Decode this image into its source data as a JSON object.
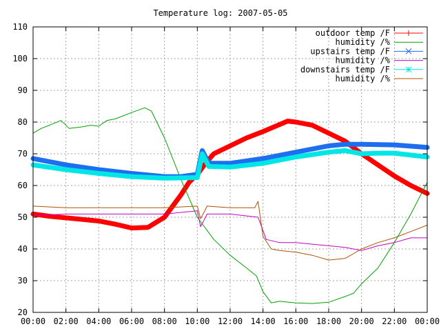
{
  "chart_data": {
    "type": "line",
    "title": "Temperature log: 2007-05-05",
    "xlabel": "",
    "ylabel": "",
    "xlim": [
      0,
      24
    ],
    "ylim": [
      20,
      110
    ],
    "x_ticks": [
      "00:00",
      "02:00",
      "04:00",
      "06:00",
      "08:00",
      "10:00",
      "12:00",
      "14:00",
      "16:00",
      "18:00",
      "20:00",
      "22:00",
      "00:00"
    ],
    "y_ticks": [
      20,
      30,
      40,
      50,
      60,
      70,
      80,
      90,
      100,
      110
    ],
    "grid": true,
    "legend_position": "top-right",
    "series": [
      {
        "name": "outdoor temp /F",
        "color": "#ff0000",
        "marker": "plus",
        "style": "thick",
        "points": [
          [
            0,
            51
          ],
          [
            1,
            50.3
          ],
          [
            2,
            49.8
          ],
          [
            3,
            49.3
          ],
          [
            4,
            48.8
          ],
          [
            5,
            47.8
          ],
          [
            6,
            46.6
          ],
          [
            7,
            46.8
          ],
          [
            8,
            50
          ],
          [
            9,
            57
          ],
          [
            9.5,
            61
          ],
          [
            10,
            63.5
          ],
          [
            10.5,
            67
          ],
          [
            11,
            70
          ],
          [
            12,
            72.5
          ],
          [
            13,
            75
          ],
          [
            14,
            77
          ],
          [
            15,
            79.2
          ],
          [
            15.5,
            80.3
          ],
          [
            16,
            80
          ],
          [
            17,
            79
          ],
          [
            18,
            76.5
          ],
          [
            19,
            74
          ],
          [
            20,
            70
          ],
          [
            21,
            66.5
          ],
          [
            22,
            63
          ],
          [
            23,
            60
          ],
          [
            24,
            57.5
          ]
        ]
      },
      {
        "name": "humidity /%",
        "color": "#00a000",
        "marker": "none",
        "style": "thin",
        "points": [
          [
            0,
            76.5
          ],
          [
            0.5,
            78
          ],
          [
            1,
            79
          ],
          [
            1.7,
            80.5
          ],
          [
            2.2,
            78
          ],
          [
            3,
            78.5
          ],
          [
            3.5,
            79
          ],
          [
            4,
            78.7
          ],
          [
            4.5,
            80.5
          ],
          [
            5,
            81
          ],
          [
            6,
            83
          ],
          [
            6.8,
            84.5
          ],
          [
            7.2,
            83.5
          ],
          [
            8,
            75
          ],
          [
            9,
            62
          ],
          [
            10,
            50
          ],
          [
            11,
            43
          ],
          [
            12,
            38
          ],
          [
            13,
            34
          ],
          [
            13.6,
            31.5
          ],
          [
            14,
            26.5
          ],
          [
            14.5,
            23
          ],
          [
            15,
            23.5
          ],
          [
            16,
            23
          ],
          [
            17,
            22.8
          ],
          [
            18,
            23.2
          ],
          [
            19,
            25
          ],
          [
            19.5,
            26
          ],
          [
            20,
            29
          ],
          [
            21,
            34
          ],
          [
            22,
            42
          ],
          [
            23,
            51
          ],
          [
            24,
            61
          ]
        ]
      },
      {
        "name": "upstairs temp /F",
        "color": "#1e6ef0",
        "marker": "x",
        "style": "thick",
        "points": [
          [
            0,
            68.5
          ],
          [
            2,
            66.5
          ],
          [
            4,
            65
          ],
          [
            6,
            63.8
          ],
          [
            8,
            62.8
          ],
          [
            9,
            62.8
          ],
          [
            10,
            63.5
          ],
          [
            10.3,
            71
          ],
          [
            10.7,
            67
          ],
          [
            12,
            67
          ],
          [
            14,
            68.5
          ],
          [
            16,
            70.5
          ],
          [
            18,
            72.5
          ],
          [
            19,
            73
          ],
          [
            20,
            73
          ],
          [
            22,
            72.8
          ],
          [
            24,
            72
          ]
        ]
      },
      {
        "name": "humidity /%",
        "color": "#c000c0",
        "marker": "none",
        "style": "thin",
        "points": [
          [
            0,
            50.5
          ],
          [
            2,
            51
          ],
          [
            4,
            51
          ],
          [
            6,
            51
          ],
          [
            8,
            51
          ],
          [
            10,
            52
          ],
          [
            10.2,
            47
          ],
          [
            10.6,
            51
          ],
          [
            12,
            51
          ],
          [
            13.7,
            50
          ],
          [
            14.2,
            43
          ],
          [
            15,
            42
          ],
          [
            16,
            42
          ],
          [
            17,
            41.5
          ],
          [
            18,
            41
          ],
          [
            19,
            40.5
          ],
          [
            20,
            39.5
          ],
          [
            21,
            41
          ],
          [
            22,
            42
          ],
          [
            23,
            43.5
          ],
          [
            24,
            43.5
          ]
        ]
      },
      {
        "name": "downstairs temp /F",
        "color": "#00e6e6",
        "marker": "star",
        "style": "thick",
        "points": [
          [
            0,
            66.5
          ],
          [
            2,
            65
          ],
          [
            4,
            63.8
          ],
          [
            6,
            62.8
          ],
          [
            8,
            62.3
          ],
          [
            10,
            62.5
          ],
          [
            10.3,
            70
          ],
          [
            10.7,
            66
          ],
          [
            12,
            65.8
          ],
          [
            14,
            67
          ],
          [
            16,
            69
          ],
          [
            18,
            70.5
          ],
          [
            19,
            71
          ],
          [
            20,
            70
          ],
          [
            21,
            70.2
          ],
          [
            22,
            70.2
          ],
          [
            24,
            69
          ]
        ]
      },
      {
        "name": "humidity /%",
        "color": "#b05000",
        "marker": "none",
        "style": "thin",
        "points": [
          [
            0,
            53.5
          ],
          [
            2,
            53
          ],
          [
            4,
            53
          ],
          [
            6,
            53
          ],
          [
            8,
            53
          ],
          [
            10,
            53.5
          ],
          [
            10.2,
            49.5
          ],
          [
            10.6,
            53.5
          ],
          [
            12,
            53
          ],
          [
            13.5,
            53
          ],
          [
            13.7,
            55
          ],
          [
            14,
            44
          ],
          [
            14.5,
            40
          ],
          [
            15,
            39.5
          ],
          [
            16,
            39
          ],
          [
            17,
            38
          ],
          [
            18,
            36.5
          ],
          [
            19,
            37
          ],
          [
            20,
            40
          ],
          [
            21,
            42
          ],
          [
            22,
            43.5
          ],
          [
            23,
            45.5
          ],
          [
            24,
            47.5
          ]
        ]
      }
    ]
  }
}
